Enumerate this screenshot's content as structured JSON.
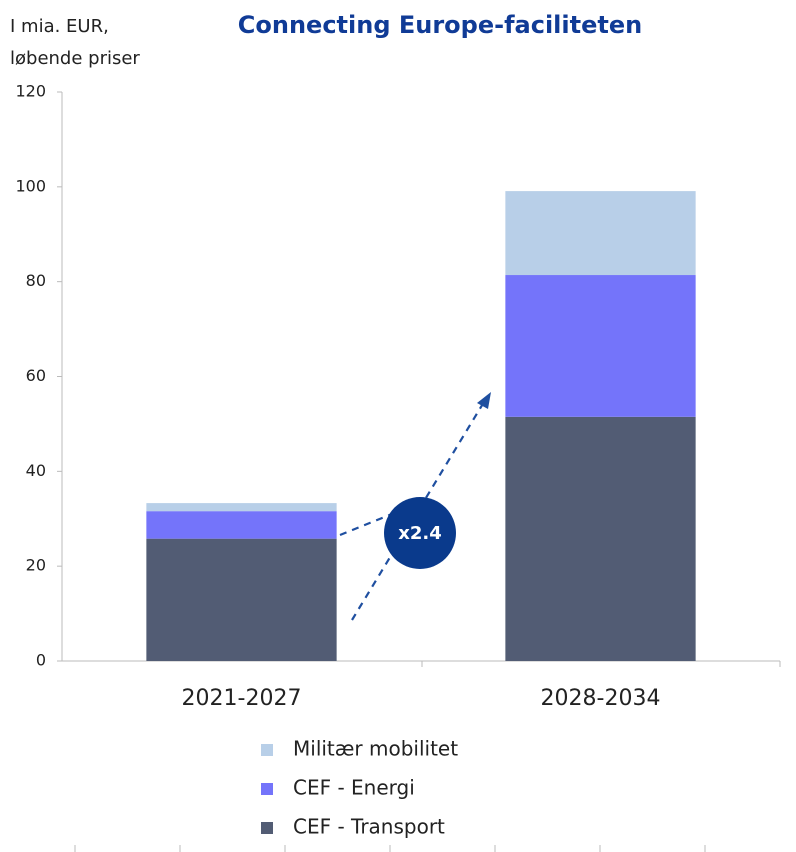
{
  "chart_data": {
    "type": "bar",
    "stacked": true,
    "title": "Connecting Europe-faciliteten",
    "y_label": [
      "I mia. EUR,",
      "løbende priser"
    ],
    "categories": [
      "2021-2027",
      "2028-2034"
    ],
    "series": [
      {
        "name": "CEF - Transport",
        "color": "#525c74",
        "values": [
          25.8,
          51.5
        ]
      },
      {
        "name": "CEF - Energi",
        "color": "#7474fa",
        "values": [
          5.8,
          29.9
        ]
      },
      {
        "name": "Militær mobilitet",
        "color": "#b8cfe8",
        "values": [
          1.7,
          17.7
        ]
      }
    ],
    "ylim": [
      0,
      120
    ],
    "yticks": [
      0,
      20,
      40,
      60,
      80,
      100,
      120
    ],
    "annotation": "x2.4"
  }
}
